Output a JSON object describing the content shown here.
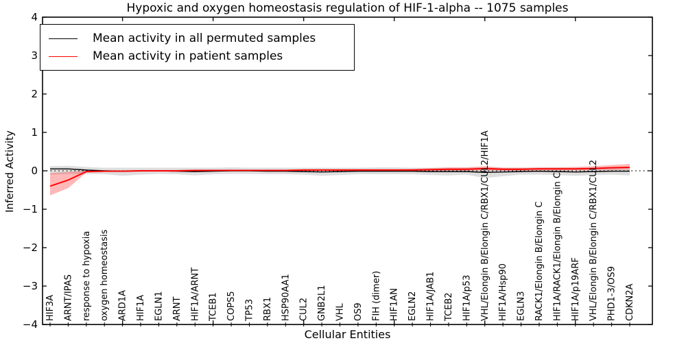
{
  "chart_data": {
    "type": "line",
    "title": "Hypoxic and oxygen homeostasis regulation of HIF-1-alpha -- 1075 samples",
    "xlabel": "Cellular Entities",
    "ylabel": "Inferred Activity",
    "ylim": [
      -4,
      4
    ],
    "yticks": [
      -4,
      -3,
      -2,
      -1,
      0,
      1,
      2,
      3,
      4
    ],
    "grid": false,
    "zero_line": true,
    "legend_position": "upper left",
    "categories": [
      "HIF3A",
      "ARNT/IPAS",
      "response to hypoxia",
      "oxygen homeostasis",
      "ARD1A",
      "HIF1A",
      "EGLN1",
      "ARNT",
      "HIF1A/ARNT",
      "TCEB1",
      "COPS5",
      "TP53",
      "RBX1",
      "HSP90AA1",
      "CUL2",
      "GNB2L1",
      "VHL",
      "OS9",
      "FIH (dimer)",
      "HIF1AN",
      "EGLN2",
      "HIF1A/JAB1",
      "TCEB2",
      "HIF1A/p53",
      "VHL/Elongin B/Elongin C/RBX1/CUL2/HIF1A",
      "HIF1A/Hsp90",
      "EGLN3",
      "RACK1/Elongin B/Elongin C",
      "HIF1A/RACK1/Elongin B/Elongin C",
      "HIF1A/p19ARF",
      "VHL/Elongin B/Elongin C/RBX1/CUL2",
      "PHD1-3/OS9",
      "CDKN2A"
    ],
    "series": [
      {
        "name": "Mean activity in all permuted samples",
        "color": "#000000",
        "band_color": "rgba(0,0,0,0.13)",
        "values": [
          0.05,
          0.05,
          0.02,
          0.0,
          -0.01,
          0.0,
          0.0,
          -0.01,
          -0.02,
          -0.01,
          0.0,
          0.0,
          -0.01,
          -0.01,
          -0.02,
          -0.03,
          -0.02,
          -0.01,
          -0.01,
          -0.01,
          -0.01,
          -0.02,
          -0.02,
          -0.02,
          -0.04,
          -0.03,
          -0.02,
          -0.01,
          -0.02,
          -0.03,
          -0.02,
          -0.01,
          -0.01
        ],
        "band_upper": [
          0.12,
          0.13,
          0.1,
          0.08,
          0.08,
          0.08,
          0.08,
          0.08,
          0.08,
          0.08,
          0.09,
          0.08,
          0.08,
          0.08,
          0.08,
          0.08,
          0.08,
          0.08,
          0.09,
          0.09,
          0.08,
          0.08,
          0.08,
          0.08,
          0.09,
          0.08,
          0.08,
          0.08,
          0.09,
          0.08,
          0.09,
          0.1,
          0.11
        ],
        "band_lower": [
          -0.1,
          -0.08,
          -0.08,
          -0.09,
          -0.13,
          -0.1,
          -0.08,
          -0.09,
          -0.12,
          -0.09,
          -0.08,
          -0.08,
          -0.09,
          -0.09,
          -0.1,
          -0.13,
          -0.11,
          -0.09,
          -0.09,
          -0.09,
          -0.09,
          -0.11,
          -0.12,
          -0.1,
          -0.19,
          -0.14,
          -0.1,
          -0.1,
          -0.11,
          -0.13,
          -0.11,
          -0.1,
          -0.12
        ]
      },
      {
        "name": "Mean activity in patient samples",
        "color": "#ff0000",
        "band_color": "rgba(255,0,0,0.28)",
        "values": [
          -0.4,
          -0.24,
          -0.02,
          -0.01,
          -0.01,
          0.0,
          0.0,
          0.0,
          0.01,
          0.01,
          0.01,
          0.01,
          0.01,
          0.01,
          0.02,
          0.02,
          0.02,
          0.02,
          0.02,
          0.02,
          0.02,
          0.03,
          0.04,
          0.04,
          0.06,
          0.04,
          0.04,
          0.05,
          0.05,
          0.05,
          0.06,
          0.08,
          0.09
        ],
        "band_upper": [
          -0.06,
          -0.03,
          0.0,
          0.01,
          0.01,
          0.02,
          0.02,
          0.02,
          0.03,
          0.03,
          0.03,
          0.03,
          0.03,
          0.03,
          0.04,
          0.04,
          0.04,
          0.04,
          0.04,
          0.04,
          0.05,
          0.07,
          0.09,
          0.09,
          0.12,
          0.08,
          0.08,
          0.09,
          0.09,
          0.1,
          0.12,
          0.15,
          0.18
        ],
        "band_lower": [
          -0.64,
          -0.45,
          -0.05,
          -0.03,
          -0.03,
          -0.02,
          -0.02,
          -0.02,
          -0.01,
          -0.01,
          -0.01,
          -0.01,
          -0.01,
          -0.01,
          0.0,
          0.0,
          0.0,
          0.0,
          0.0,
          0.0,
          0.0,
          0.0,
          0.0,
          0.0,
          0.01,
          0.0,
          0.0,
          0.01,
          0.01,
          0.01,
          0.02,
          0.02,
          0.03
        ]
      }
    ]
  },
  "legend": {
    "entries": [
      {
        "label": "Mean activity in all permuted samples",
        "color": "#000000"
      },
      {
        "label": "Mean activity in patient samples",
        "color": "#ff0000"
      }
    ]
  }
}
